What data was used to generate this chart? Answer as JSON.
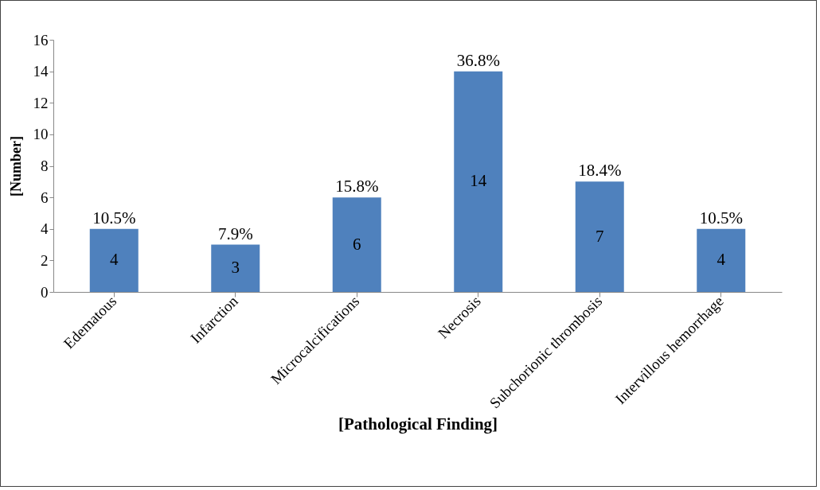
{
  "chart_data": {
    "type": "bar",
    "xlabel": "[Pathological Finding]",
    "ylabel": "[Number]",
    "categories": [
      "Edematous",
      "Infarction",
      "Microcalcifications",
      "Necrosis",
      "Subchorionic thrombosis",
      "Intervillous hemorrhage"
    ],
    "values": [
      4,
      3,
      6,
      14,
      7,
      4
    ],
    "color": "#4f81bd",
    "data_labels": true,
    "annotations": [
      {
        "text": "10.5%",
        "x": "Edematous",
        "y": 4
      },
      {
        "text": "7.9%",
        "x": "Infarction",
        "y": 3
      },
      {
        "text": "15.8%",
        "x": "Microcalcifications",
        "y": 6
      },
      {
        "text": "36.8%",
        "x": "Necrosis",
        "y": 14
      },
      {
        "text": "18.4%",
        "x": "Subchorionic thrombosis",
        "y": 7
      },
      {
        "text": "10.5%",
        "x": "Intervillous hemorrhage",
        "y": 4
      }
    ],
    "ylim": [
      0,
      16
    ],
    "yticks": [
      0,
      2,
      4,
      6,
      8,
      10,
      12,
      14,
      16
    ],
    "grid": false
  }
}
